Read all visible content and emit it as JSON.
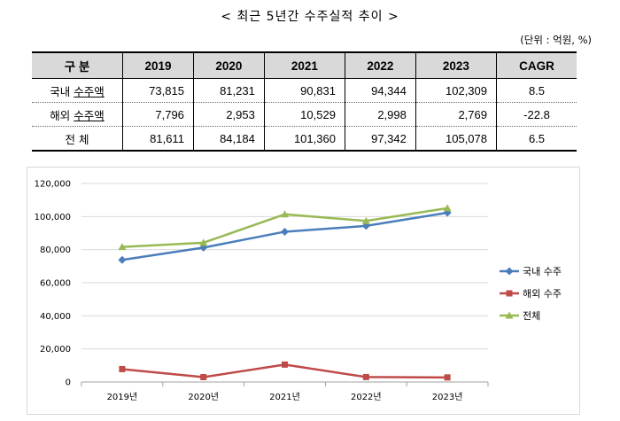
{
  "title": "< 최근 5년간 수주실적 추이 >",
  "unit": "(단위 : 억원, %)",
  "table": {
    "header": [
      "구  분",
      "2019",
      "2020",
      "2021",
      "2022",
      "2023",
      "CAGR"
    ],
    "rows": [
      {
        "label_prefix": "국내 ",
        "label_underline": "수주액",
        "cells": [
          "73,815",
          "81,231",
          "90,831",
          "94,344",
          "102,309",
          "8.5"
        ]
      },
      {
        "label_prefix": "해외 ",
        "label_underline": "수주액",
        "cells": [
          "7,796",
          "2,953",
          "10,529",
          "2,998",
          "2,769",
          "-22.8"
        ]
      },
      {
        "label_prefix": "전  체",
        "label_underline": "",
        "cells": [
          "81,611",
          "84,184",
          "101,360",
          "97,342",
          "105,078",
          "6.5"
        ]
      }
    ]
  },
  "chart_data": {
    "type": "line",
    "categories": [
      "2019년",
      "2020년",
      "2021년",
      "2022년",
      "2023년"
    ],
    "y_ticks": [
      "0",
      "20,000",
      "40,000",
      "60,000",
      "80,000",
      "100,000",
      "120,000"
    ],
    "ylim": [
      0,
      120000
    ],
    "grid": true,
    "legend": "right",
    "series": [
      {
        "name": "국내 수주",
        "color": "#4a7ebb",
        "marker": "diamond",
        "values": [
          73815,
          81231,
          90831,
          94344,
          102309
        ]
      },
      {
        "name": "해외 수주",
        "color": "#be4b48",
        "marker": "square",
        "values": [
          7796,
          2953,
          10529,
          2998,
          2769
        ]
      },
      {
        "name": "전체",
        "color": "#98b954",
        "marker": "triangle",
        "values": [
          81611,
          84184,
          101360,
          97342,
          105078
        ]
      }
    ]
  }
}
